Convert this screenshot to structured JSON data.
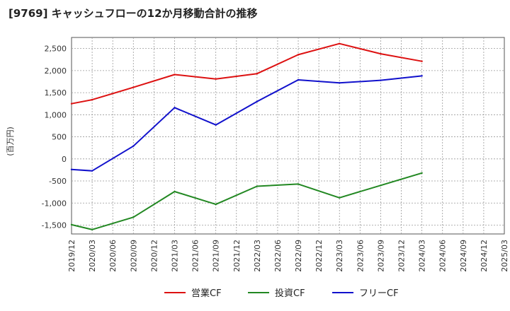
{
  "chart_data": {
    "type": "line",
    "title": "[9769]  キャッシュフローの12か月移動合計の推移",
    "ylabel": "(百万円)",
    "xlabel": "",
    "ylim": [
      -1700,
      2750
    ],
    "yticks": [
      -1500,
      -1000,
      -500,
      0,
      500,
      1000,
      1500,
      2000,
      2500
    ],
    "ytick_labels": [
      "-1,500",
      "-1,000",
      "-500",
      "0",
      "500",
      "1,000",
      "1,500",
      "2,000",
      "2,500"
    ],
    "xticks": [
      "2019/12",
      "2020/03",
      "2020/06",
      "2020/09",
      "2020/12",
      "2021/03",
      "2021/06",
      "2021/09",
      "2021/12",
      "2022/03",
      "2022/06",
      "2022/09",
      "2022/12",
      "2023/03",
      "2023/06",
      "2023/09",
      "2023/12",
      "2024/03",
      "2024/06",
      "2024/09",
      "2024/12",
      "2025/03"
    ],
    "grid": true,
    "legend_position": "bottom",
    "series": [
      {
        "name": "営業CF",
        "color": "#dd1111",
        "x": [
          "2019/12",
          "2020/03",
          "2020/09",
          "2021/03",
          "2021/09",
          "2022/03",
          "2022/09",
          "2023/03",
          "2023/09",
          "2024/03"
        ],
        "values": [
          1250,
          1340,
          1620,
          1910,
          1810,
          1930,
          2360,
          2610,
          2380,
          2210
        ]
      },
      {
        "name": "投資CF",
        "color": "#228822",
        "x": [
          "2019/12",
          "2020/03",
          "2020/09",
          "2021/03",
          "2021/09",
          "2022/03",
          "2022/09",
          "2023/03",
          "2023/09",
          "2024/03"
        ],
        "values": [
          -1490,
          -1600,
          -1320,
          -740,
          -1030,
          -620,
          -570,
          -880,
          -600,
          -320
        ]
      },
      {
        "name": "フリーCF",
        "color": "#1111cc",
        "x": [
          "2019/12",
          "2020/03",
          "2020/09",
          "2021/03",
          "2021/09",
          "2022/03",
          "2022/09",
          "2023/03",
          "2023/09",
          "2024/03"
        ],
        "values": [
          -240,
          -270,
          290,
          1160,
          770,
          1300,
          1790,
          1720,
          1780,
          1880
        ]
      }
    ]
  }
}
